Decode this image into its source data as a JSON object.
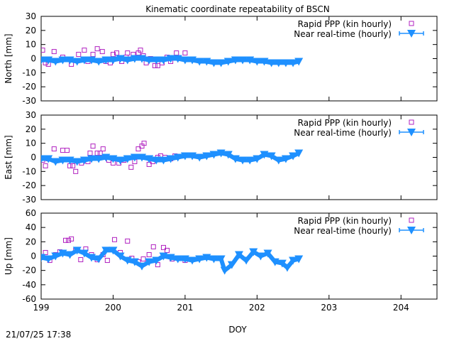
{
  "title": "Kinematic coordinate repeatability of BSCN",
  "xlabel": "DOY",
  "timestamp": "21/07/25 17:38",
  "colors": {
    "rapid": "#b020c0",
    "nrt": "#1e90ff",
    "axis": "#000000"
  },
  "chart_data": [
    {
      "type": "scatter",
      "ylabel": "North [mm]",
      "ylim": [
        -30,
        30
      ],
      "yticks": [
        "30",
        "20",
        "10",
        "0",
        "-10",
        "-20",
        "-30"
      ],
      "xlim": [
        199,
        204.5
      ],
      "legend": [
        "Rapid PPP (kin hourly)",
        "Near real-time (hourly)"
      ],
      "legend_position": "top-right",
      "series": [
        {
          "name": "Rapid PPP (kin hourly)",
          "marker": "square",
          "points": [
            [
              199.02,
              6
            ],
            [
              199.06,
              -3
            ],
            [
              199.1,
              -4
            ],
            [
              199.18,
              5
            ],
            [
              199.3,
              1
            ],
            [
              199.42,
              -4
            ],
            [
              199.52,
              3
            ],
            [
              199.6,
              6
            ],
            [
              199.65,
              -2
            ],
            [
              199.72,
              3
            ],
            [
              199.78,
              7
            ],
            [
              199.85,
              5
            ],
            [
              199.9,
              -2
            ],
            [
              199.96,
              -3
            ],
            [
              200.0,
              3
            ],
            [
              200.05,
              4
            ],
            [
              200.12,
              -2
            ],
            [
              200.18,
              1
            ],
            [
              200.2,
              4
            ],
            [
              200.28,
              3
            ],
            [
              200.35,
              4
            ],
            [
              200.38,
              6
            ],
            [
              200.42,
              2
            ],
            [
              200.46,
              -3
            ],
            [
              200.52,
              0
            ],
            [
              200.58,
              -5
            ],
            [
              200.62,
              -5
            ],
            [
              200.68,
              -3
            ],
            [
              200.75,
              1
            ],
            [
              200.8,
              -2
            ],
            [
              200.88,
              4
            ],
            [
              200.92,
              0
            ],
            [
              201.0,
              4
            ]
          ]
        },
        {
          "name": "Near real-time (hourly)",
          "marker": "triangle-down",
          "points": [
            [
              199.0,
              -1
            ],
            [
              199.1,
              -1
            ],
            [
              199.2,
              -2
            ],
            [
              199.3,
              -1
            ],
            [
              199.4,
              -1
            ],
            [
              199.5,
              -2
            ],
            [
              199.6,
              -1
            ],
            [
              199.7,
              -1
            ],
            [
              199.8,
              -2
            ],
            [
              199.9,
              -1
            ],
            [
              200.0,
              -1
            ],
            [
              200.1,
              0
            ],
            [
              200.2,
              -1
            ],
            [
              200.3,
              0
            ],
            [
              200.4,
              0
            ],
            [
              200.5,
              -1
            ],
            [
              200.6,
              -1
            ],
            [
              200.7,
              -1
            ],
            [
              200.8,
              0
            ],
            [
              200.9,
              0
            ],
            [
              201.0,
              -1
            ],
            [
              201.1,
              -1
            ],
            [
              201.2,
              -2
            ],
            [
              201.3,
              -2
            ],
            [
              201.4,
              -3
            ],
            [
              201.5,
              -3
            ],
            [
              201.6,
              -2
            ],
            [
              201.7,
              -1
            ],
            [
              201.8,
              -1
            ],
            [
              201.9,
              -1
            ],
            [
              202.0,
              -2
            ],
            [
              202.1,
              -2
            ],
            [
              202.2,
              -3
            ],
            [
              202.3,
              -3
            ],
            [
              202.4,
              -3
            ],
            [
              202.5,
              -3
            ],
            [
              202.58,
              -2
            ]
          ]
        }
      ]
    },
    {
      "type": "scatter",
      "ylabel": "East [mm]",
      "ylim": [
        -30,
        30
      ],
      "yticks": [
        "30",
        "20",
        "10",
        "0",
        "-10",
        "-20",
        "-30"
      ],
      "xlim": [
        199,
        204.5
      ],
      "legend": [
        "Rapid PPP (kin hourly)",
        "Near real-time (hourly)"
      ],
      "legend_position": "top-right",
      "series": [
        {
          "name": "Rapid PPP (kin hourly)",
          "marker": "square",
          "points": [
            [
              199.02,
              -2
            ],
            [
              199.06,
              -6
            ],
            [
              199.1,
              -1
            ],
            [
              199.18,
              6
            ],
            [
              199.3,
              5
            ],
            [
              199.36,
              5
            ],
            [
              199.4,
              -6
            ],
            [
              199.44,
              -6
            ],
            [
              199.48,
              -10
            ],
            [
              199.56,
              -4
            ],
            [
              199.65,
              -3
            ],
            [
              199.68,
              3
            ],
            [
              199.72,
              8
            ],
            [
              199.78,
              3
            ],
            [
              199.82,
              3
            ],
            [
              199.86,
              6
            ],
            [
              199.94,
              -2
            ],
            [
              200.0,
              -4
            ],
            [
              200.08,
              -4
            ],
            [
              200.15,
              -2
            ],
            [
              200.25,
              -7
            ],
            [
              200.3,
              -3
            ],
            [
              200.35,
              6
            ],
            [
              200.4,
              8
            ],
            [
              200.43,
              10
            ],
            [
              200.5,
              -5
            ],
            [
              200.55,
              -3
            ],
            [
              200.62,
              0
            ],
            [
              200.66,
              1
            ],
            [
              200.72,
              0
            ],
            [
              200.8,
              -1
            ],
            [
              200.86,
              1
            ]
          ]
        },
        {
          "name": "Near real-time (hourly)",
          "marker": "triangle-down",
          "points": [
            [
              199.0,
              -1
            ],
            [
              199.1,
              -1
            ],
            [
              199.2,
              -3
            ],
            [
              199.3,
              -2
            ],
            [
              199.4,
              -2
            ],
            [
              199.5,
              -3
            ],
            [
              199.6,
              -2
            ],
            [
              199.7,
              -1
            ],
            [
              199.8,
              -1
            ],
            [
              199.9,
              0
            ],
            [
              200.0,
              -1
            ],
            [
              200.1,
              -2
            ],
            [
              200.2,
              -1
            ],
            [
              200.3,
              0
            ],
            [
              200.4,
              0
            ],
            [
              200.5,
              -1
            ],
            [
              200.6,
              -2
            ],
            [
              200.7,
              -2
            ],
            [
              200.8,
              -1
            ],
            [
              200.9,
              0
            ],
            [
              201.0,
              1
            ],
            [
              201.1,
              1
            ],
            [
              201.2,
              0
            ],
            [
              201.3,
              1
            ],
            [
              201.4,
              2
            ],
            [
              201.5,
              3
            ],
            [
              201.6,
              2
            ],
            [
              201.7,
              -1
            ],
            [
              201.8,
              -2
            ],
            [
              201.9,
              -2
            ],
            [
              202.0,
              -1
            ],
            [
              202.1,
              2
            ],
            [
              202.2,
              1
            ],
            [
              202.3,
              -2
            ],
            [
              202.4,
              -1
            ],
            [
              202.5,
              1
            ],
            [
              202.58,
              3
            ]
          ]
        }
      ]
    },
    {
      "type": "scatter",
      "ylabel": "Up [mm]",
      "ylim": [
        -60,
        60
      ],
      "yticks": [
        "60",
        "40",
        "20",
        "0",
        "-20",
        "-40",
        "-60"
      ],
      "xlim": [
        199,
        204.5
      ],
      "legend": [
        "Rapid PPP (kin hourly)",
        "Near real-time (hourly)"
      ],
      "legend_position": "top-right",
      "series": [
        {
          "name": "Rapid PPP (kin hourly)",
          "marker": "square",
          "points": [
            [
              199.02,
              -2
            ],
            [
              199.06,
              5
            ],
            [
              199.12,
              -6
            ],
            [
              199.2,
              2
            ],
            [
              199.26,
              6
            ],
            [
              199.34,
              22
            ],
            [
              199.38,
              22
            ],
            [
              199.42,
              24
            ],
            [
              199.48,
              8
            ],
            [
              199.55,
              -5
            ],
            [
              199.62,
              10
            ],
            [
              199.7,
              2
            ],
            [
              199.78,
              -5
            ],
            [
              199.86,
              2
            ],
            [
              199.92,
              -6
            ],
            [
              200.02,
              23
            ],
            [
              200.1,
              5
            ],
            [
              200.2,
              21
            ],
            [
              200.26,
              -3
            ],
            [
              200.35,
              -8
            ],
            [
              200.42,
              -4
            ],
            [
              200.5,
              2
            ],
            [
              200.56,
              13
            ],
            [
              200.62,
              -12
            ],
            [
              200.7,
              12
            ],
            [
              200.75,
              8
            ],
            [
              200.82,
              -4
            ],
            [
              201.0,
              -6
            ]
          ]
        },
        {
          "name": "Near real-time (hourly)",
          "marker": "triangle-down",
          "points": [
            [
              199.0,
              -2
            ],
            [
              199.1,
              -4
            ],
            [
              199.2,
              0
            ],
            [
              199.3,
              4
            ],
            [
              199.4,
              2
            ],
            [
              199.5,
              8
            ],
            [
              199.6,
              4
            ],
            [
              199.7,
              -2
            ],
            [
              199.8,
              -4
            ],
            [
              199.9,
              8
            ],
            [
              200.0,
              8
            ],
            [
              200.1,
              0
            ],
            [
              200.2,
              -6
            ],
            [
              200.3,
              -8
            ],
            [
              200.4,
              -14
            ],
            [
              200.5,
              -8
            ],
            [
              200.6,
              -6
            ],
            [
              200.7,
              0
            ],
            [
              200.8,
              -2
            ],
            [
              200.9,
              -4
            ],
            [
              201.0,
              -4
            ],
            [
              201.1,
              -6
            ],
            [
              201.2,
              -4
            ],
            [
              201.3,
              -2
            ],
            [
              201.4,
              -4
            ],
            [
              201.5,
              -4
            ],
            [
              201.55,
              -20
            ],
            [
              201.65,
              -12
            ],
            [
              201.75,
              2
            ],
            [
              201.85,
              -6
            ],
            [
              201.95,
              6
            ],
            [
              202.05,
              0
            ],
            [
              202.15,
              4
            ],
            [
              202.25,
              -8
            ],
            [
              202.35,
              -10
            ],
            [
              202.42,
              -16
            ],
            [
              202.5,
              -6
            ],
            [
              202.58,
              -4
            ]
          ]
        }
      ]
    }
  ],
  "xticks": [
    "199",
    "200",
    "201",
    "202",
    "203",
    "204"
  ]
}
